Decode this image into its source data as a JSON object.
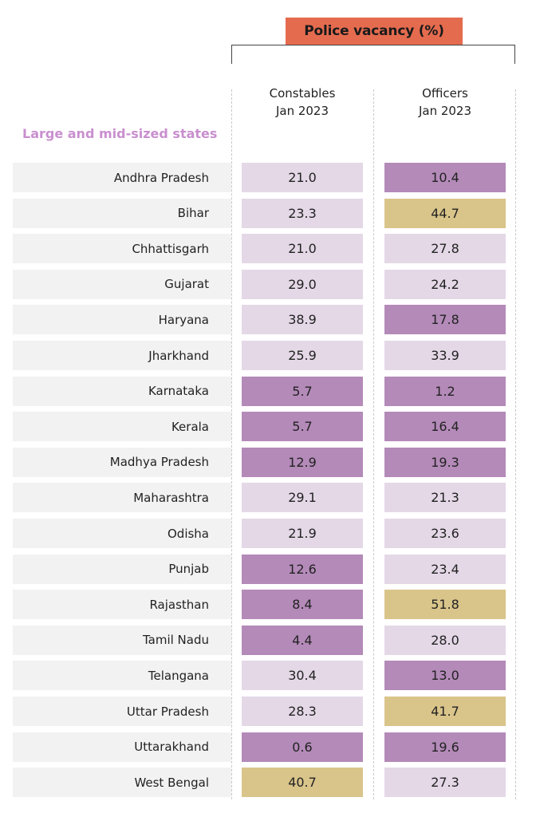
{
  "chart_data": {
    "type": "table",
    "title": "Police vacancy (%)",
    "section_label": "Large and mid-sized states",
    "columns": [
      {
        "key": "constables",
        "line1": "Constables",
        "line2": "Jan 2023"
      },
      {
        "key": "officers",
        "line1": "Officers",
        "line2": "Jan 2023"
      }
    ],
    "rows": [
      {
        "state": "Andhra Pradesh",
        "constables": "21.0",
        "officers": "10.4"
      },
      {
        "state": "Bihar",
        "constables": "23.3",
        "officers": "44.7"
      },
      {
        "state": "Chhattisgarh",
        "constables": "21.0",
        "officers": "27.8"
      },
      {
        "state": "Gujarat",
        "constables": "29.0",
        "officers": "24.2"
      },
      {
        "state": "Haryana",
        "constables": "38.9",
        "officers": "17.8"
      },
      {
        "state": "Jharkhand",
        "constables": "25.9",
        "officers": "33.9"
      },
      {
        "state": "Karnataka",
        "constables": "5.7",
        "officers": "1.2"
      },
      {
        "state": "Kerala",
        "constables": "5.7",
        "officers": "16.4"
      },
      {
        "state": "Madhya Pradesh",
        "constables": "12.9",
        "officers": "19.3"
      },
      {
        "state": "Maharashtra",
        "constables": "29.1",
        "officers": "21.3"
      },
      {
        "state": "Odisha",
        "constables": "21.9",
        "officers": "23.6"
      },
      {
        "state": "Punjab",
        "constables": "12.6",
        "officers": "23.4"
      },
      {
        "state": "Rajasthan",
        "constables": "8.4",
        "officers": "51.8"
      },
      {
        "state": "Tamil Nadu",
        "constables": "4.4",
        "officers": "28.0"
      },
      {
        "state": "Telangana",
        "constables": "30.4",
        "officers": "13.0"
      },
      {
        "state": "Uttar Pradesh",
        "constables": "28.3",
        "officers": "41.7"
      },
      {
        "state": "Uttarakhand",
        "constables": "0.6",
        "officers": "19.6"
      },
      {
        "state": "West Bengal",
        "constables": "40.7",
        "officers": "27.3"
      }
    ],
    "color_scale": {
      "low": "#b48ab9",
      "mid": "#e4d8e7",
      "high": "#d9c48a",
      "low_max": 20,
      "high_min": 40
    },
    "colors": {
      "header": "#e56b4f",
      "section_label": "#c98fcf",
      "state_cell_bg": "#f2f2f2"
    }
  }
}
